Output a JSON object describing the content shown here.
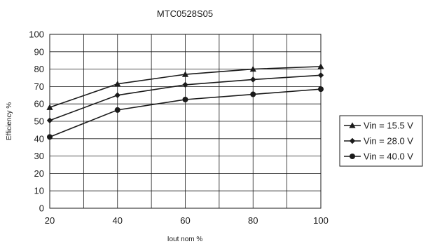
{
  "chart_data": {
    "type": "line",
    "title": "MTC0528S05",
    "xlabel": "Iout nom %",
    "ylabel": "Efficiency %",
    "x": [
      20,
      40,
      60,
      80,
      100
    ],
    "xticks": [
      "20",
      "40",
      "60",
      "80",
      "100"
    ],
    "yticks": [
      "0",
      "10",
      "20",
      "30",
      "40",
      "50",
      "60",
      "70",
      "80",
      "90",
      "100"
    ],
    "xlim": [
      20,
      100
    ],
    "ylim": [
      0,
      100
    ],
    "grid": true,
    "legend_position": "right",
    "series": [
      {
        "name": "Vin = 15.5 V",
        "marker": "triangle",
        "values": [
          58,
          71.5,
          77,
          80,
          81.5
        ]
      },
      {
        "name": "Vin = 28.0 V",
        "marker": "diamond",
        "values": [
          50.5,
          65,
          71,
          74,
          76.5
        ]
      },
      {
        "name": "Vin = 40.0 V",
        "marker": "circle",
        "values": [
          41,
          56.5,
          62.5,
          65.5,
          68.5
        ]
      }
    ],
    "line_color": "#1a1a1a"
  }
}
